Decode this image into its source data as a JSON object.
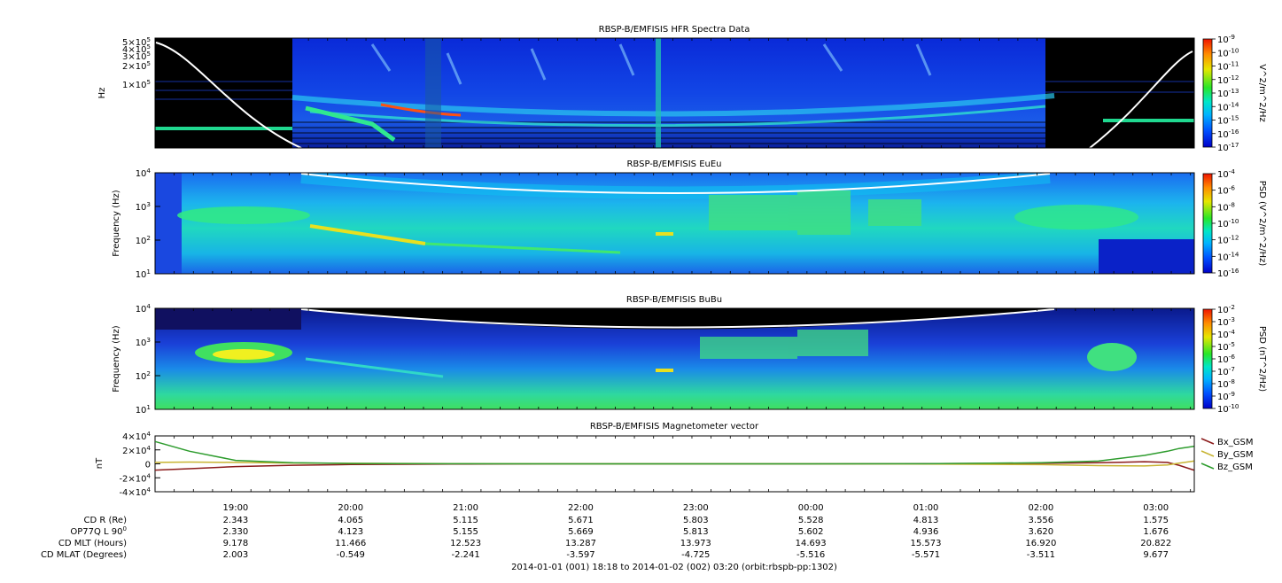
{
  "footer_text": "2014-01-01 (001) 18:18 to 2014-01-02 (002) 03:20 (orbit:rbspb-pp:1302)",
  "time_ticks": [
    "19:00",
    "20:00",
    "21:00",
    "22:00",
    "23:00",
    "00:00",
    "01:00",
    "02:00",
    "03:00"
  ],
  "ephemeris": {
    "rows": [
      {
        "label": "CD R (Re)",
        "values": [
          "2.343",
          "4.065",
          "5.115",
          "5.671",
          "5.803",
          "5.528",
          "4.813",
          "3.556",
          "1.575"
        ]
      },
      {
        "label": "OP77Q L 90",
        "label_sup": "0",
        "values": [
          "2.330",
          "4.123",
          "5.155",
          "5.669",
          "5.813",
          "5.602",
          "4.936",
          "3.620",
          "1.676"
        ]
      },
      {
        "label": "CD MLT (Hours)",
        "values": [
          "9.178",
          "11.466",
          "12.523",
          "13.287",
          "13.973",
          "14.693",
          "15.573",
          "16.920",
          "20.822"
        ]
      },
      {
        "label": "CD MLAT (Degrees)",
        "values": [
          "2.003",
          "-0.549",
          "-2.241",
          "-3.597",
          "-4.725",
          "-5.516",
          "-5.571",
          "-3.511",
          "9.677"
        ]
      }
    ]
  },
  "chart_data": [
    {
      "type": "heatmap",
      "title": "RBSP-B/EMFISIS  HFR Spectra Data",
      "ylabel": "Hz",
      "yscale": "log",
      "ytick_labels": [
        {
          "base": "5",
          "exp": "5"
        },
        {
          "base": "4",
          "exp": "5"
        },
        {
          "base": "3",
          "exp": "5"
        },
        {
          "base": "2",
          "exp": "5"
        },
        {
          "base": "1",
          "exp": "5"
        }
      ],
      "colorbar": {
        "label": "V^2/m^2/Hz",
        "ticks": [
          "10^-9",
          "10^-10",
          "10^-11",
          "10^-12",
          "10^-13",
          "10^-14",
          "10^-15",
          "10^-16",
          "10^-17"
        ]
      }
    },
    {
      "type": "heatmap",
      "title": "RBSP-B/EMFISIS  EuEu",
      "ylabel": "Frequency (Hz)",
      "yscale": "log",
      "ylim": [
        10,
        10000
      ],
      "ytick_labels": [
        "10^4",
        "10^3",
        "10^2",
        "10^1"
      ],
      "colorbar": {
        "label": "PSD (V^2/m^2/Hz)",
        "ticks": [
          "10^-4",
          "10^-6",
          "10^-8",
          "10^-10",
          "10^-12",
          "10^-14",
          "10^-16"
        ]
      }
    },
    {
      "type": "heatmap",
      "title": "RBSP-B/EMFISIS  BuBu",
      "ylabel": "Frequency (Hz)",
      "yscale": "log",
      "ylim": [
        10,
        10000
      ],
      "ytick_labels": [
        "10^4",
        "10^3",
        "10^2",
        "10^1"
      ],
      "colorbar": {
        "label": "PSD (nT^2/Hz)",
        "ticks": [
          "10^-2",
          "10^-3",
          "10^-4",
          "10^-5",
          "10^-6",
          "10^-7",
          "10^-8",
          "10^-9",
          "10^-10"
        ]
      }
    },
    {
      "type": "line",
      "title": "RBSP-B/EMFISIS  Magnetometer vector",
      "ylabel": "nT",
      "ylim": [
        -40000,
        40000
      ],
      "ytick_labels": [
        "4×10^4",
        "2×10^4",
        "0",
        "-2×10^4",
        "-4×10^4"
      ],
      "x_hours": [
        18.3,
        18.6,
        19.0,
        19.5,
        20.0,
        21.0,
        22.0,
        23.0,
        24.0,
        25.0,
        26.0,
        26.5,
        26.9,
        27.1,
        27.2,
        27.33
      ],
      "series": [
        {
          "name": "Bx_GSM",
          "color": "#8b1a1a",
          "values": [
            -9000,
            -7000,
            -4000,
            -2000,
            -1000,
            -300,
            0,
            0,
            0,
            200,
            800,
            1500,
            3000,
            2000,
            -2000,
            -9000
          ]
        },
        {
          "name": "By_GSM",
          "color": "#c8b432",
          "values": [
            2000,
            2500,
            2000,
            1200,
            700,
            200,
            0,
            0,
            0,
            -200,
            -1200,
            -2500,
            -3000,
            -1500,
            1000,
            4000
          ]
        },
        {
          "name": "Bz_GSM",
          "color": "#2e9c2e",
          "values": [
            32000,
            18000,
            5000,
            1500,
            500,
            100,
            0,
            0,
            0,
            100,
            1500,
            4000,
            12000,
            18000,
            22000,
            25000
          ]
        }
      ]
    }
  ]
}
